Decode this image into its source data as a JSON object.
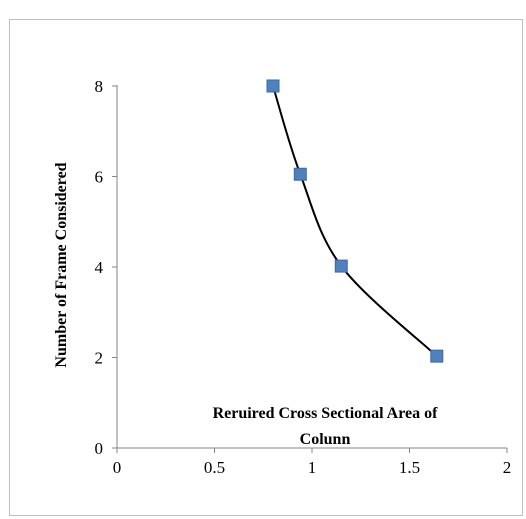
{
  "chart_data": {
    "type": "scatter",
    "title": "",
    "xlabel": "Reruired Cross Sectional Area of Colunn",
    "xlabel_lines": [
      "Reruired Cross Sectional Area of",
      "Colunn"
    ],
    "ylabel": "Number of Frame Considered",
    "xlim": [
      0,
      2
    ],
    "ylim": [
      0,
      8
    ],
    "x_ticks": [
      "0",
      "0.5",
      "1",
      "1.5",
      "2"
    ],
    "y_ticks": [
      "0",
      "2",
      "4",
      "6",
      "8"
    ],
    "grid": false,
    "legend": "none",
    "smoothed_line": true,
    "series": [
      {
        "x": [
          0.8,
          0.94,
          1.15,
          1.64
        ],
        "y": [
          8,
          6.05,
          4.02,
          2.03
        ]
      }
    ],
    "colors": {
      "marker": "#4f81bd",
      "marker_edge": "#3a6aa5",
      "line": "#000000",
      "axis": "#868686",
      "frame": "#bfbfbf"
    }
  }
}
